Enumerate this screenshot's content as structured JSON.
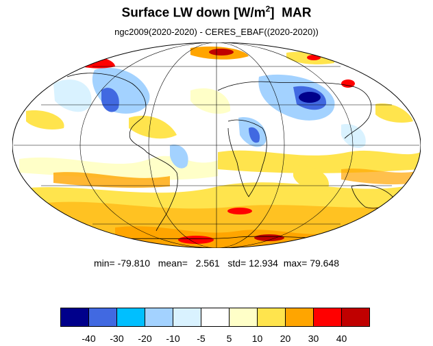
{
  "title": {
    "main": "Surface LW down [W/m",
    "sup": "2",
    "close": "]",
    "month": "MAR"
  },
  "subtitle": "ngc2009(2020-2020) - CERES_EBAF((2020-2020))",
  "stats": {
    "min_label": "min=",
    "min": "-79.810",
    "mean_label": "mean=",
    "mean": "2.561",
    "std_label": "std=",
    "std": "12.934",
    "max_label": "max=",
    "max": "79.648"
  },
  "map": {
    "projection": "Mollweide",
    "gridlines_lat": [
      -60,
      -30,
      0,
      30,
      60
    ],
    "gridlines_lon": [
      -120,
      -60,
      0,
      60,
      120
    ],
    "coastlines": true
  },
  "colorbar": {
    "colors": [
      "#00008b",
      "#4169e1",
      "#00bfff",
      "#a3d2ff",
      "#d9f2ff",
      "#ffffff",
      "#ffffc8",
      "#ffe44d",
      "#ffa500",
      "#ff0000",
      "#c00000"
    ],
    "tick_labels": [
      "-40",
      "-30",
      "-20",
      "-10",
      "-5",
      "5",
      "10",
      "20",
      "30",
      "40"
    ]
  }
}
